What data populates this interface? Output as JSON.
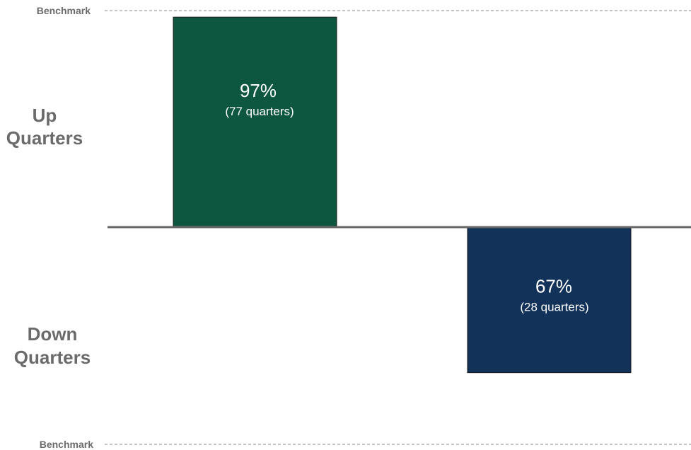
{
  "chart_data": {
    "type": "bar",
    "categories": [
      "Up Quarters",
      "Down Quarters"
    ],
    "values": [
      97,
      -67
    ],
    "value_labels": [
      "97%",
      "67%"
    ],
    "sub_labels": [
      "(77 quarters)",
      "(28 quarters)"
    ],
    "ylim": [
      -100,
      100
    ],
    "reference_lines": [
      {
        "label": "Benchmark",
        "value": 100
      },
      {
        "label": "Benchmark",
        "value": -100
      }
    ],
    "side_labels": {
      "up": [
        "Up",
        "Quarters"
      ],
      "down": [
        "Down",
        "Quarters"
      ]
    },
    "colors": {
      "up": "#0d5640",
      "down": "#12325a",
      "axis": "#666666",
      "benchmark_line": "#888888",
      "label_text": "#6b6b6b"
    }
  }
}
